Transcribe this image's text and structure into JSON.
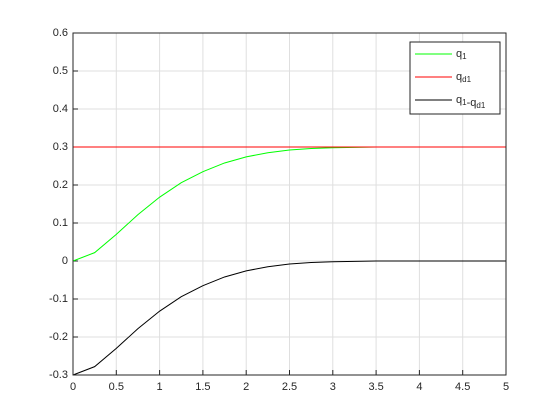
{
  "chart_data": {
    "type": "line",
    "x": [
      0,
      0.25,
      0.5,
      0.75,
      1,
      1.25,
      1.5,
      1.75,
      2,
      2.25,
      2.5,
      2.75,
      3,
      3.25,
      3.5,
      3.75,
      4,
      4.25,
      4.5,
      4.75,
      5
    ],
    "series": [
      {
        "name": "q1",
        "color": "#00ff00",
        "values": [
          0,
          0.022,
          0.07,
          0.122,
          0.168,
          0.206,
          0.235,
          0.258,
          0.274,
          0.285,
          0.292,
          0.296,
          0.298,
          0.299,
          0.3,
          0.3,
          0.3,
          0.3,
          0.3,
          0.3,
          0.3
        ]
      },
      {
        "name": "qd1",
        "color": "#ff0000",
        "values": [
          0.3,
          0.3,
          0.3,
          0.3,
          0.3,
          0.3,
          0.3,
          0.3,
          0.3,
          0.3,
          0.3,
          0.3,
          0.3,
          0.3,
          0.3,
          0.3,
          0.3,
          0.3,
          0.3,
          0.3,
          0.3
        ]
      },
      {
        "name": "q1-qd1",
        "color": "#000000",
        "values": [
          -0.3,
          -0.278,
          -0.23,
          -0.178,
          -0.132,
          -0.094,
          -0.065,
          -0.042,
          -0.026,
          -0.015,
          -0.008,
          -0.004,
          -0.002,
          -0.001,
          0,
          0,
          0,
          0,
          0,
          0,
          0
        ]
      }
    ],
    "xlim": [
      0,
      5
    ],
    "xticks": [
      0,
      0.5,
      1,
      1.5,
      2,
      2.5,
      3,
      3.5,
      4,
      4.5,
      5
    ],
    "ylim": [
      -0.3,
      0.6
    ],
    "yticks": [
      -0.3,
      -0.2,
      -0.1,
      0,
      0.1,
      0.2,
      0.3,
      0.4,
      0.5,
      0.6
    ],
    "grid": true,
    "legend": "northeast"
  }
}
